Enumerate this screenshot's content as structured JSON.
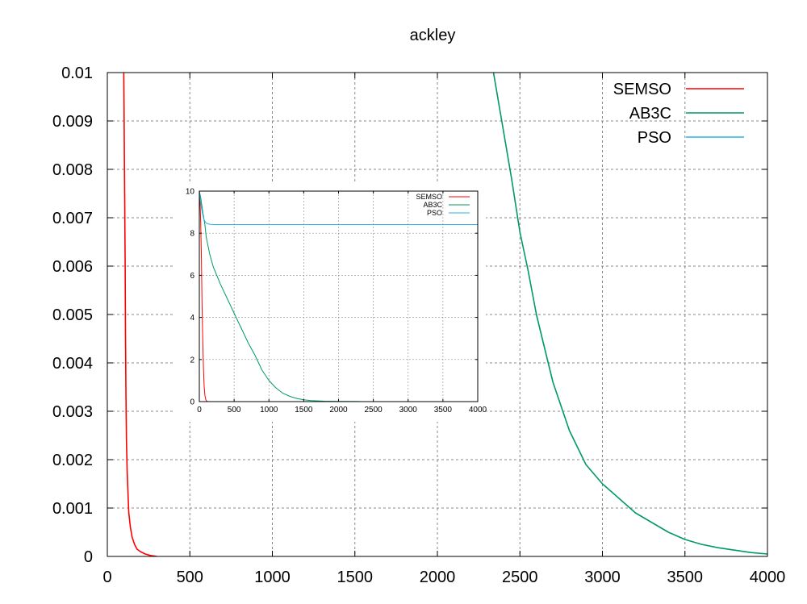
{
  "chart_data": [
    {
      "type": "line",
      "title": "ackley",
      "xlabel": "",
      "ylabel": "",
      "xlim": [
        0,
        4000
      ],
      "ylim": [
        0,
        0.01
      ],
      "xticks": [
        0,
        500,
        1000,
        1500,
        2000,
        2500,
        3000,
        3500,
        4000
      ],
      "yticks": [
        0,
        0.001,
        0.002,
        0.003,
        0.004,
        0.005,
        0.006,
        0.007,
        0.008,
        0.009,
        0.01
      ],
      "xtick_labels": [
        "0",
        "500",
        "1000",
        "1500",
        "2000",
        "2500",
        "3000",
        "3500",
        "4000"
      ],
      "ytick_labels": [
        "0",
        "0.001",
        "0.002",
        "0.003",
        "0.004",
        "0.005",
        "0.006",
        "0.007",
        "0.008",
        "0.009",
        "0.01"
      ],
      "grid": true,
      "legend_position": "top-right",
      "series": [
        {
          "name": "SEMSO",
          "color": "#ff0000",
          "x": [
            100,
            105,
            108,
            110,
            113,
            116,
            120,
            125,
            130,
            140,
            150,
            165,
            180,
            200,
            230,
            260,
            300
          ],
          "y": [
            0.01,
            0.0074,
            0.006,
            0.0046,
            0.0033,
            0.0024,
            0.0018,
            0.0013,
            0.0009,
            0.0006,
            0.0004,
            0.00025,
            0.00015,
            0.0001,
            5e-05,
            2e-05,
            0
          ]
        },
        {
          "name": "AB3C",
          "color": "#009a63",
          "x": [
            2340,
            2400,
            2450,
            2500,
            2550,
            2600,
            2650,
            2700,
            2750,
            2800,
            2900,
            3000,
            3100,
            3200,
            3300,
            3400,
            3500,
            3600,
            3700,
            3800,
            3900,
            4000
          ],
          "y": [
            0.01,
            0.0088,
            0.0078,
            0.0067,
            0.0059,
            0.005,
            0.0043,
            0.0036,
            0.0031,
            0.0026,
            0.0019,
            0.0015,
            0.0012,
            0.0009,
            0.0007,
            0.0005,
            0.00035,
            0.00025,
            0.00018,
            0.00013,
            8e-05,
            5e-05
          ]
        },
        {
          "name": "PSO",
          "color": "#2bb0e6",
          "x": [],
          "y": []
        }
      ]
    },
    {
      "type": "line",
      "title": "",
      "xlabel": "",
      "ylabel": "",
      "xlim": [
        0,
        4000
      ],
      "ylim": [
        0,
        10
      ],
      "xticks": [
        0,
        500,
        1000,
        1500,
        2000,
        2500,
        3000,
        3500,
        4000
      ],
      "yticks": [
        0,
        2,
        4,
        6,
        8,
        10
      ],
      "xtick_labels": [
        "0",
        "500",
        "1000",
        "1500",
        "2000",
        "2500",
        "3000",
        "3500",
        "4000"
      ],
      "ytick_labels": [
        "0",
        "2",
        "4",
        "6",
        "8",
        "10"
      ],
      "grid": true,
      "legend_position": "top-right",
      "series": [
        {
          "name": "SEMSO",
          "color": "#ff0000",
          "x": [
            0,
            10,
            20,
            30,
            40,
            50,
            60,
            70,
            80,
            90,
            100,
            110,
            120
          ],
          "y": [
            10,
            9.5,
            8.5,
            6.8,
            4.5,
            2.8,
            1.5,
            0.7,
            0.3,
            0.12,
            0.05,
            0.01,
            0
          ]
        },
        {
          "name": "AB3C",
          "color": "#009a63",
          "x": [
            0,
            20,
            50,
            80,
            100,
            150,
            200,
            300,
            400,
            500,
            600,
            700,
            800,
            900,
            1000,
            1100,
            1200,
            1300,
            1400,
            1500,
            1600,
            1800,
            2000,
            2300
          ],
          "y": [
            10,
            9.7,
            9.0,
            8.4,
            7.8,
            7.0,
            6.4,
            5.6,
            4.9,
            4.2,
            3.5,
            2.8,
            2.2,
            1.5,
            1.0,
            0.65,
            0.4,
            0.25,
            0.15,
            0.09,
            0.05,
            0.02,
            0.008,
            0.003
          ]
        },
        {
          "name": "PSO",
          "color": "#2bb0e6",
          "x": [
            0,
            30,
            60,
            90,
            120,
            160,
            200,
            300,
            4000
          ],
          "y": [
            10,
            9.2,
            8.7,
            8.5,
            8.45,
            8.42,
            8.41,
            8.41,
            8.41
          ]
        }
      ]
    }
  ]
}
